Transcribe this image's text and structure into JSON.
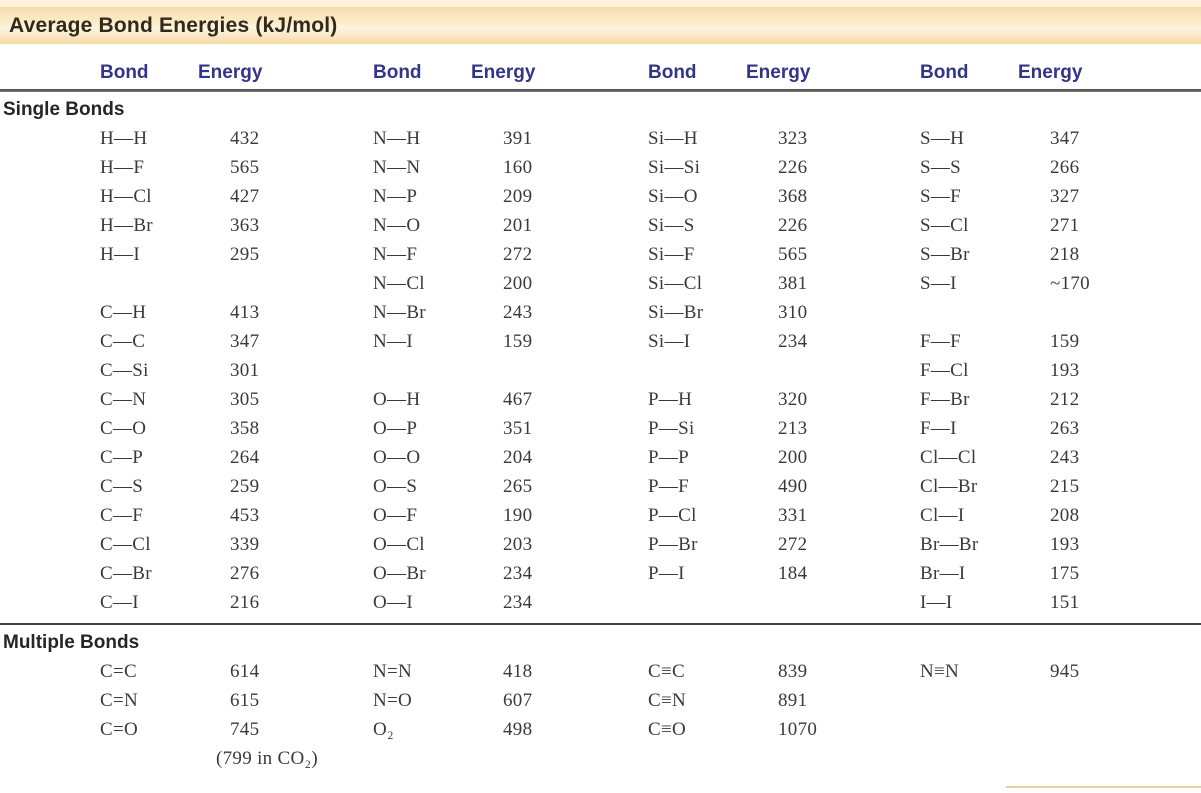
{
  "title": "Average Bond Energies (kJ/mol)",
  "header": {
    "bond_label": "Bond",
    "energy_label": "Energy",
    "pairs": 4
  },
  "colors": {
    "banner_tan": "#f6deab",
    "banner_highlight": "#fdf4e0",
    "header_text_blue": "#34348a",
    "title_text": "#31291a",
    "body_text": "#3a3a3a",
    "rule_dark": "#3f3f3f",
    "bottom_accent_tan": "#e9cda4"
  },
  "sections": [
    {
      "label": "Single Bonds",
      "rows": [
        [
          "H—H",
          "432",
          "N—H",
          "391",
          "Si—H",
          "323",
          "S—H",
          "347"
        ],
        [
          "H—F",
          "565",
          "N—N",
          "160",
          "Si—Si",
          "226",
          "S—S",
          "266"
        ],
        [
          "H—Cl",
          "427",
          "N—P",
          "209",
          "Si—O",
          "368",
          "S—F",
          "327"
        ],
        [
          "H—Br",
          "363",
          "N—O",
          "201",
          "Si—S",
          "226",
          "S—Cl",
          "271"
        ],
        [
          "H—I",
          "295",
          "N—F",
          "272",
          "Si—F",
          "565",
          "S—Br",
          "218"
        ],
        [
          "",
          "",
          "N—Cl",
          "200",
          "Si—Cl",
          "381",
          "S—I",
          "~170"
        ],
        [
          "C—H",
          "413",
          "N—Br",
          "243",
          "Si—Br",
          "310",
          "",
          ""
        ],
        [
          "C—C",
          "347",
          "N—I",
          "159",
          "Si—I",
          "234",
          "F—F",
          "159"
        ],
        [
          "C—Si",
          "301",
          "",
          "",
          "",
          "",
          "F—Cl",
          "193"
        ],
        [
          "C—N",
          "305",
          "O—H",
          "467",
          "P—H",
          "320",
          "F—Br",
          "212"
        ],
        [
          "C—O",
          "358",
          "O—P",
          "351",
          "P—Si",
          "213",
          "F—I",
          "263"
        ],
        [
          "C—P",
          "264",
          "O—O",
          "204",
          "P—P",
          "200",
          "Cl—Cl",
          "243"
        ],
        [
          "C—S",
          "259",
          "O—S",
          "265",
          "P—F",
          "490",
          "Cl—Br",
          "215"
        ],
        [
          "C—F",
          "453",
          "O—F",
          "190",
          "P—Cl",
          "331",
          "Cl—I",
          "208"
        ],
        [
          "C—Cl",
          "339",
          "O—Cl",
          "203",
          "P—Br",
          "272",
          "Br—Br",
          "193"
        ],
        [
          "C—Br",
          "276",
          "O—Br",
          "234",
          "P—I",
          "184",
          "Br—I",
          "175"
        ],
        [
          "C—I",
          "216",
          "O—I",
          "234",
          "",
          "",
          "I—I",
          "151"
        ]
      ]
    },
    {
      "label": "Multiple Bonds",
      "rows": [
        [
          "C=C",
          "614",
          "N=N",
          "418",
          "C≡C",
          "839",
          "N≡N",
          "945"
        ],
        [
          "C=N",
          "615",
          "N=O",
          "607",
          "C≡N",
          "891",
          "",
          ""
        ],
        [
          "C=O",
          "745",
          "O₂",
          "498",
          "C≡O",
          "1070",
          "",
          ""
        ],
        [
          "",
          "(799 in CO₂)",
          "",
          "",
          "",
          "",
          "",
          ""
        ]
      ]
    }
  ]
}
